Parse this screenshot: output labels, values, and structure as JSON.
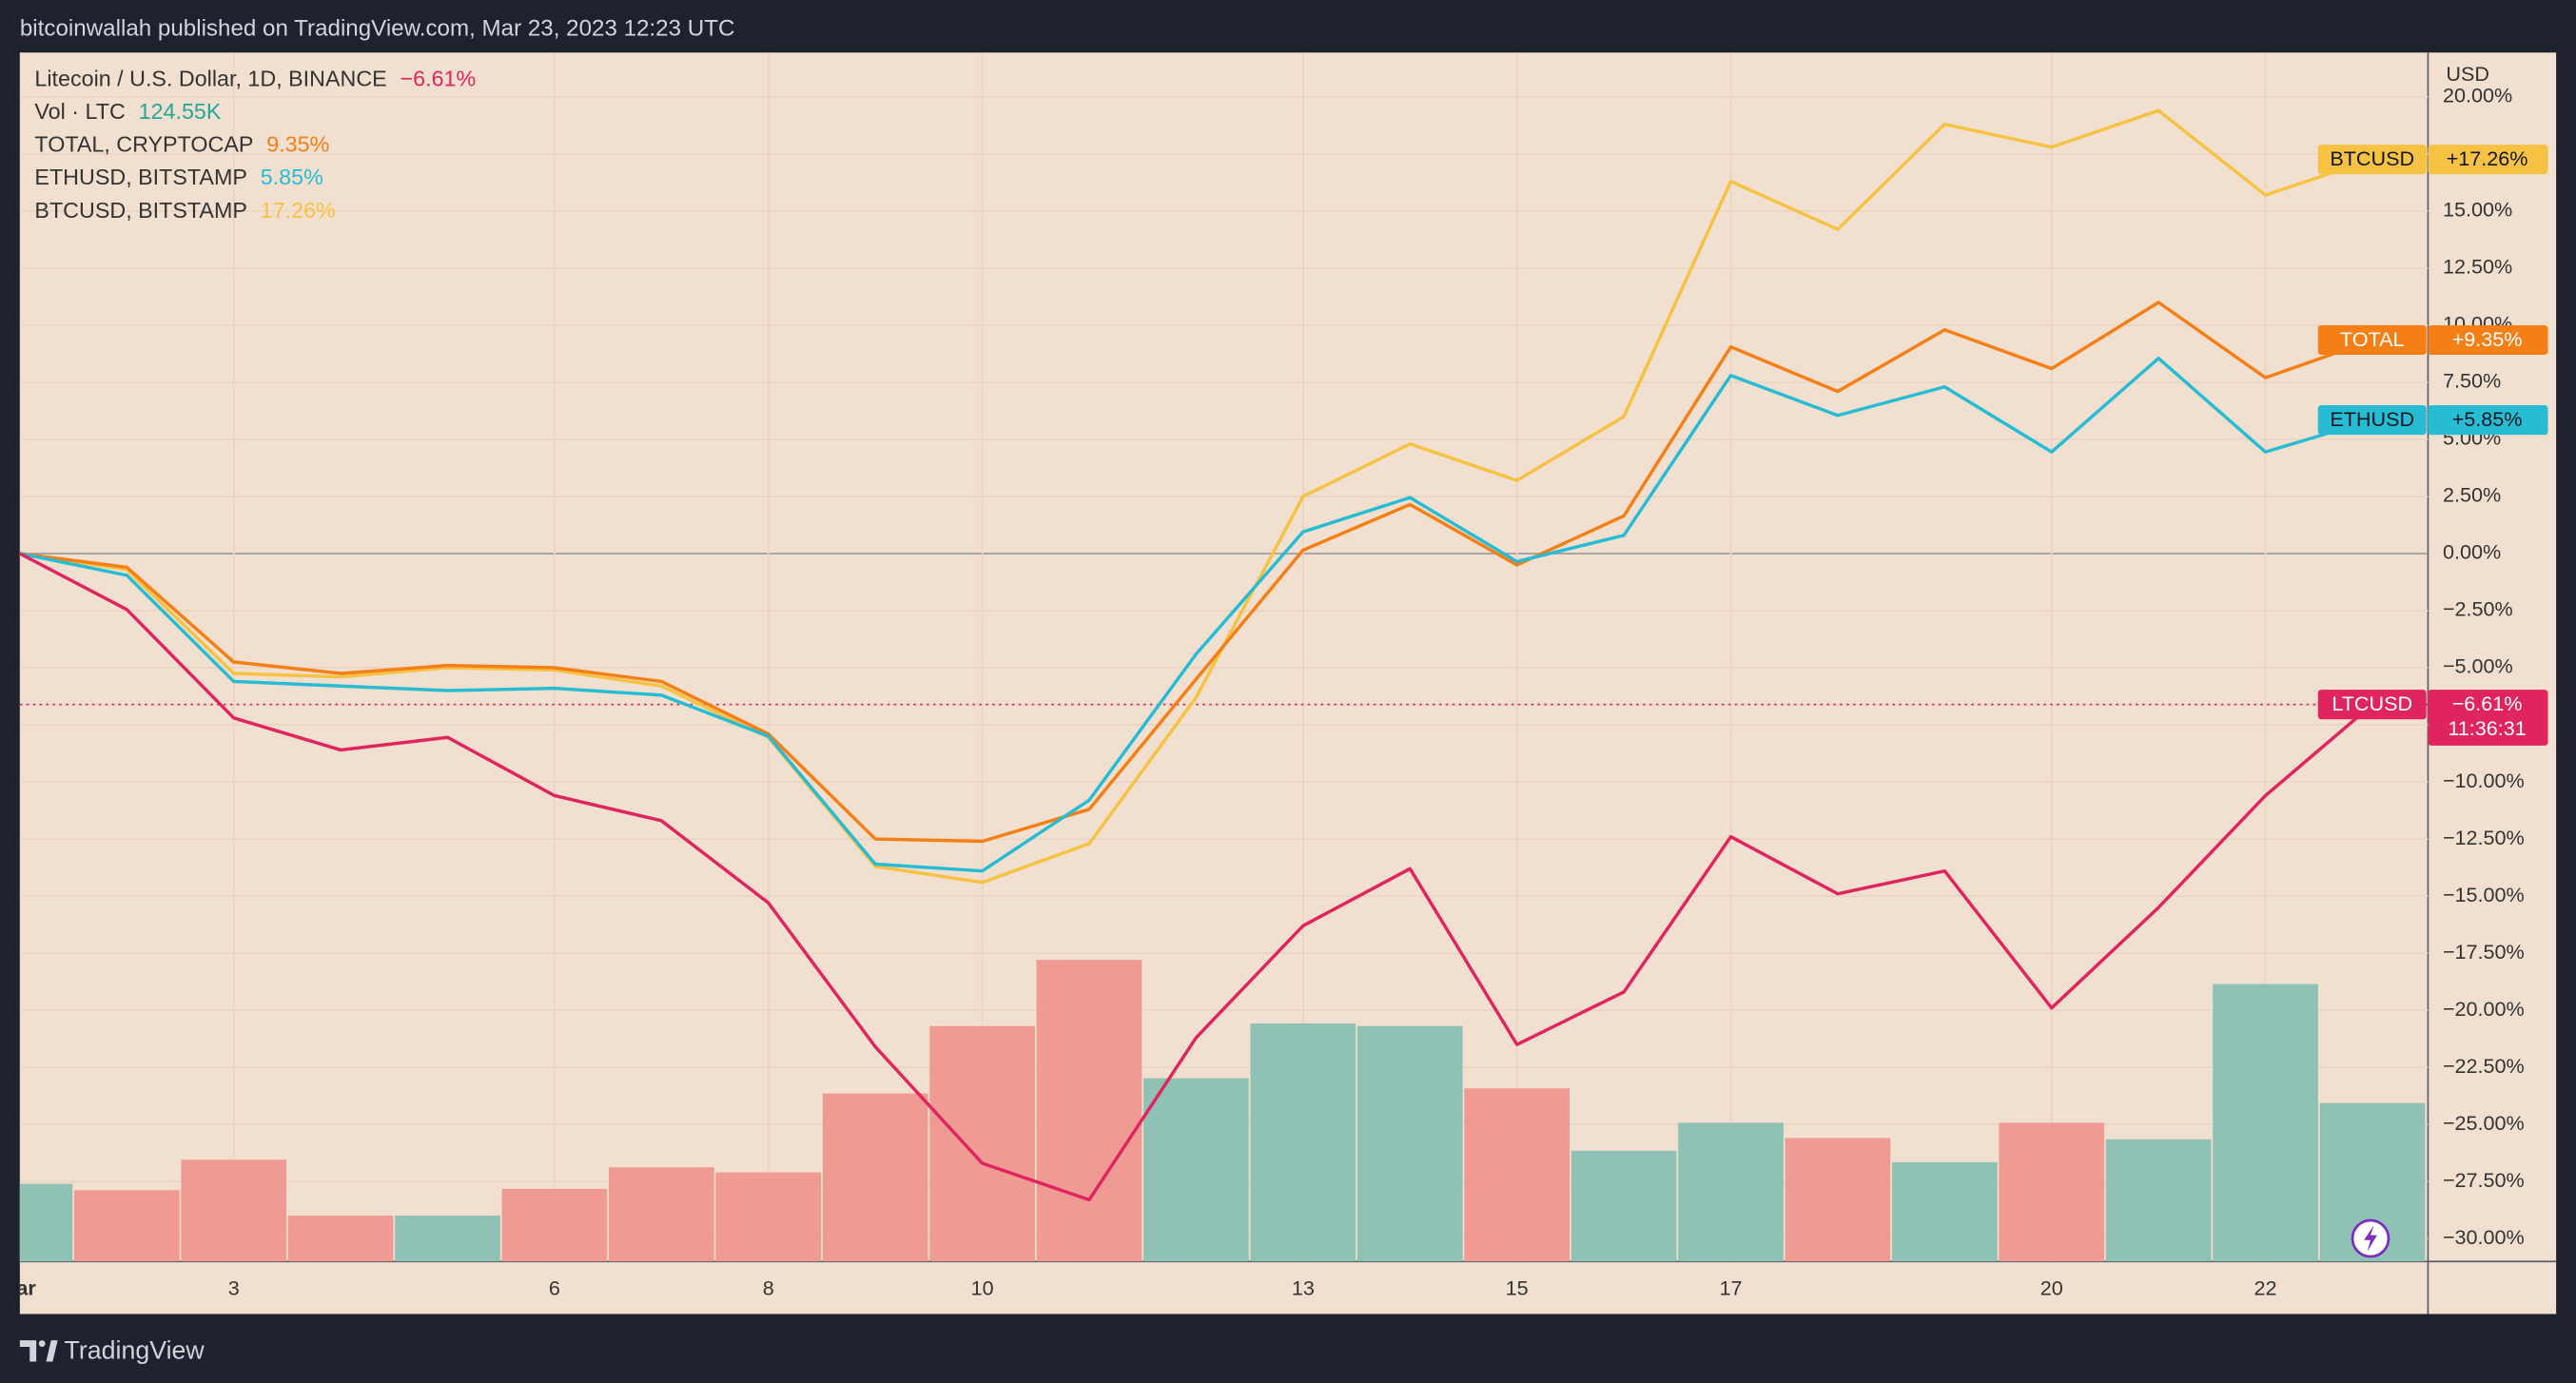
{
  "header": "bitcoinwallah published on TradingView.com, Mar 23, 2023 12:23 UTC",
  "footer": "TradingView",
  "chart_data": {
    "type": "line",
    "x": [
      1,
      2,
      3,
      4,
      5,
      6,
      7,
      8,
      9,
      10,
      11,
      12,
      13,
      14,
      15,
      16,
      17,
      18,
      19,
      20,
      21,
      22,
      23
    ],
    "xlim": [
      1,
      23.52
    ],
    "xticks": [
      {
        "value": 1,
        "label": "ar"
      },
      3,
      6,
      8,
      10,
      13,
      15,
      17,
      20,
      22
    ],
    "ylim": [
      -31,
      21.94
    ],
    "y_unit": "USD",
    "yticks": [
      {
        "value": 20,
        "label": "20.00%"
      },
      {
        "value": 17.5,
        "label": "17.50%"
      },
      {
        "value": 15,
        "label": "15.00%"
      },
      {
        "value": 12.5,
        "label": "12.50%"
      },
      {
        "value": 10,
        "label": "10.00%"
      },
      {
        "value": 7.5,
        "label": "7.50%"
      },
      {
        "value": 5,
        "label": "5.00%"
      },
      {
        "value": 2.5,
        "label": "2.50%"
      },
      {
        "value": 0,
        "label": "0.00%"
      },
      {
        "value": -2.5,
        "label": "−2.50%"
      },
      {
        "value": -5,
        "label": "−5.00%"
      },
      {
        "value": -7.5,
        "label": "−7.50%"
      },
      {
        "value": -10,
        "label": "−10.00%"
      },
      {
        "value": -12.5,
        "label": "−12.50%"
      },
      {
        "value": -15,
        "label": "−15.00%"
      },
      {
        "value": -17.5,
        "label": "−17.50%"
      },
      {
        "value": -20,
        "label": "−20.00%"
      },
      {
        "value": -22.5,
        "label": "−22.50%"
      },
      {
        "value": -25,
        "label": "−25.00%"
      },
      {
        "value": -27.5,
        "label": "−27.50%"
      },
      {
        "value": -30,
        "label": "−30.00%"
      }
    ],
    "grid": true,
    "series": [
      {
        "name": "Litecoin / U.S. Dollar, 1D, BINANCE",
        "legend_value": "−6.61%",
        "tag": "LTCUSD",
        "tag_value": "−6.61%",
        "countdown": "11:36:31",
        "color": "#e0245e",
        "values": [
          0,
          -2.45,
          -7.2,
          -8.6,
          -8.05,
          -10.6,
          -11.7,
          -15.3,
          -21.6,
          -26.7,
          -28.3,
          -21.2,
          -16.3,
          -13.8,
          -21.5,
          -19.2,
          -12.4,
          -14.9,
          -13.9,
          -19.9,
          -15.5,
          -10.6,
          -6.61
        ]
      },
      {
        "name": "TOTAL, CRYPTOCAP",
        "legend_value": "9.35%",
        "tag": "TOTAL",
        "tag_value": "+9.35%",
        "color": "#f57f17",
        "values": [
          0,
          -0.6,
          -4.75,
          -5.25,
          -4.9,
          -5.0,
          -5.6,
          -7.9,
          -12.5,
          -12.6,
          -11.2,
          -5.5,
          0.15,
          2.15,
          -0.5,
          1.65,
          9.05,
          7.1,
          9.8,
          8.1,
          11.0,
          7.7,
          9.35
        ]
      },
      {
        "name": "ETHUSD, BITSTAMP",
        "legend_value": "5.85%",
        "tag": "ETHUSD",
        "tag_value": "+5.85%",
        "color": "#28bcd4",
        "values": [
          0,
          -0.95,
          -5.6,
          -5.8,
          -6.0,
          -5.9,
          -6.2,
          -8.0,
          -13.6,
          -13.9,
          -10.8,
          -4.4,
          0.95,
          2.45,
          -0.35,
          0.8,
          7.8,
          6.05,
          7.3,
          4.45,
          8.55,
          4.45,
          5.85
        ]
      },
      {
        "name": "BTCUSD, BITSTAMP",
        "legend_value": "17.26%",
        "tag": "BTCUSD",
        "tag_value": "+17.26%",
        "color": "#f6c243",
        "values": [
          0,
          -0.7,
          -5.25,
          -5.4,
          -5.0,
          -5.1,
          -5.8,
          -8.05,
          -13.7,
          -14.4,
          -12.7,
          -6.3,
          2.5,
          4.8,
          3.2,
          6.0,
          16.3,
          14.2,
          18.8,
          17.8,
          19.4,
          15.7,
          17.26
        ]
      }
    ],
    "volume": {
      "name": "Vol · LTC",
      "legend_value": "124.55K",
      "legend_color": "#26a69a",
      "ylim": [
        0,
        950
      ],
      "values": [
        61,
        56,
        80,
        36,
        36,
        57,
        74,
        70,
        132,
        185,
        237,
        144,
        187,
        185,
        136,
        87,
        109,
        97,
        78,
        109,
        96,
        218,
        124.55
      ],
      "colors": [
        "#8fc1b4",
        "#ef9a93",
        "#ef9a93",
        "#ef9a93",
        "#8fc1b4",
        "#ef9a93",
        "#ef9a93",
        "#ef9a93",
        "#ef9a93",
        "#ef9a93",
        "#ef9a93",
        "#8fc1b4",
        "#8fc1b4",
        "#8fc1b4",
        "#ef9a93",
        "#8fc1b4",
        "#8fc1b4",
        "#ef9a93",
        "#8fc1b4",
        "#ef9a93",
        "#8fc1b4",
        "#8fc1b4",
        "#8fc1b4"
      ]
    }
  }
}
